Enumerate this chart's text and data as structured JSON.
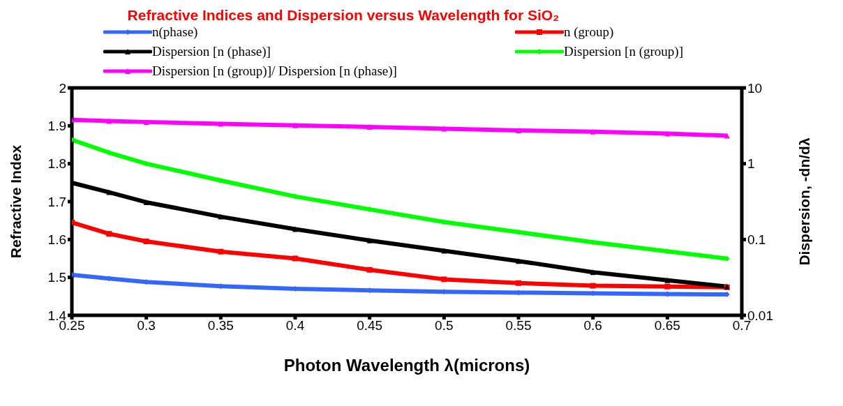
{
  "chart_data": {
    "type": "line",
    "title": "Refractive Indices and Dispersion versus Wavelength for SiO₂",
    "xlabel": "Photon Wavelength λ(microns)",
    "ylabel": "Refractive Index",
    "y2label": "Dispersion, -dn/dλ",
    "x": [
      0.25,
      0.275,
      0.3,
      0.35,
      0.4,
      0.45,
      0.5,
      0.55,
      0.6,
      0.65,
      0.69
    ],
    "xlim": [
      0.25,
      0.7
    ],
    "xticks": [
      0.25,
      0.3,
      0.35,
      0.4,
      0.45,
      0.5,
      0.55,
      0.6,
      0.65,
      0.7
    ],
    "ylim": [
      1.4,
      2
    ],
    "yticks": [
      1.4,
      1.5,
      1.6,
      1.7,
      1.8,
      1.9,
      2
    ],
    "y2lim": [
      0.01,
      10
    ],
    "y2ticks": [
      0.01,
      0.1,
      1,
      10
    ],
    "log": "y2",
    "legend": "top",
    "line_style": "solid",
    "series": [
      {
        "name": "n(phase)",
        "color": "#3366ff",
        "marker": "diamond",
        "values": [
          1.507,
          1.497,
          1.488,
          1.477,
          1.47,
          1.466,
          1.462,
          1.46,
          1.458,
          1.456,
          1.455
        ]
      },
      {
        "name": "n (group)",
        "color": "#ff0000",
        "marker": "square",
        "values": [
          1.645,
          1.615,
          1.595,
          1.568,
          1.55,
          1.52,
          1.495,
          1.485,
          1.478,
          1.476,
          1.474
        ]
      },
      {
        "name": "Dispersion [n (phase)]",
        "color": "#000000",
        "marker": "triangle",
        "axis": "y2",
        "values": [
          0.56,
          0.42,
          0.31,
          0.2,
          0.137,
          0.097,
          0.071,
          0.052,
          0.037,
          0.029,
          0.024
        ]
      },
      {
        "name": "Dispersion [n (group)]",
        "color": "#00ff00",
        "marker": "diamond",
        "axis": "y2",
        "values": [
          2.07,
          1.4,
          1.0,
          0.6,
          0.37,
          0.25,
          0.17,
          0.125,
          0.092,
          0.07,
          0.056
        ]
      },
      {
        "name": "Dispersion [n (group)]/ Dispersion [n (phase)]",
        "color": "#ff00ff",
        "marker": "triangle",
        "axis": "y2",
        "values": [
          3.8,
          3.65,
          3.55,
          3.35,
          3.2,
          3.05,
          2.9,
          2.75,
          2.65,
          2.5,
          2.34
        ]
      }
    ]
  }
}
